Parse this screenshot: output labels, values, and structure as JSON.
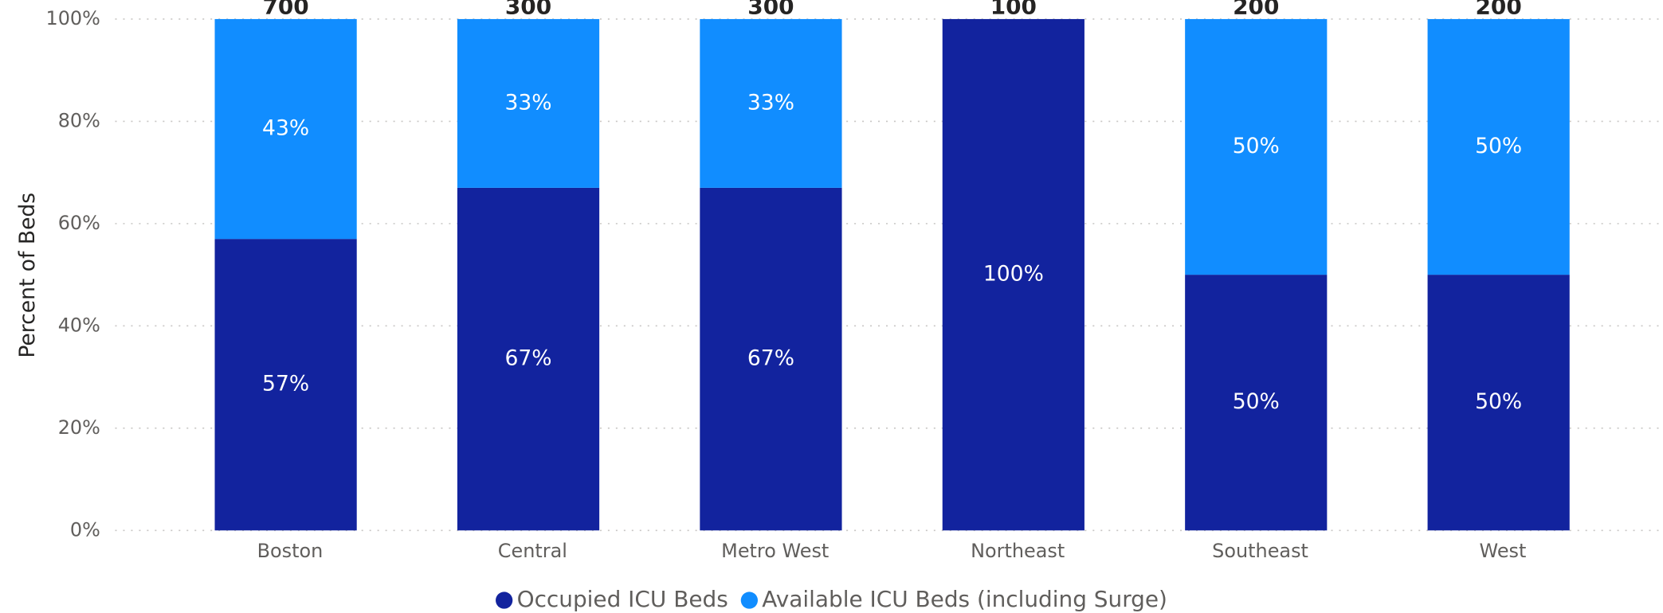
{
  "chart_data": {
    "type": "stacked-bar-100",
    "y_label": "Percent of Beds",
    "categories": [
      "Boston",
      "Central",
      "Metro West",
      "Northeast",
      "Southeast",
      "West"
    ],
    "totals": [
      700,
      300,
      300,
      100,
      200,
      200
    ],
    "series": [
      {
        "name": "Occupied ICU Beds",
        "color": "#12239e",
        "values": [
          57,
          67,
          67,
          100,
          50,
          50
        ],
        "value_labels": [
          "57%",
          "67%",
          "67%",
          "100%",
          "50%",
          "50%"
        ]
      },
      {
        "name": "Available ICU Beds (including Surge)",
        "color": "#118dff",
        "values": [
          43,
          33,
          33,
          0,
          50,
          50
        ],
        "value_labels": [
          "43%",
          "33%",
          "33%",
          null,
          "50%",
          "50%"
        ]
      }
    ],
    "ylim": [
      0,
      100
    ],
    "yticks": [
      {
        "value": 0,
        "label": "0%"
      },
      {
        "value": 20,
        "label": "20%"
      },
      {
        "value": 40,
        "label": "40%"
      },
      {
        "value": 60,
        "label": "60%"
      },
      {
        "value": 80,
        "label": "80%"
      },
      {
        "value": 100,
        "label": "100%"
      }
    ],
    "grid": true,
    "legend": "bottom"
  }
}
